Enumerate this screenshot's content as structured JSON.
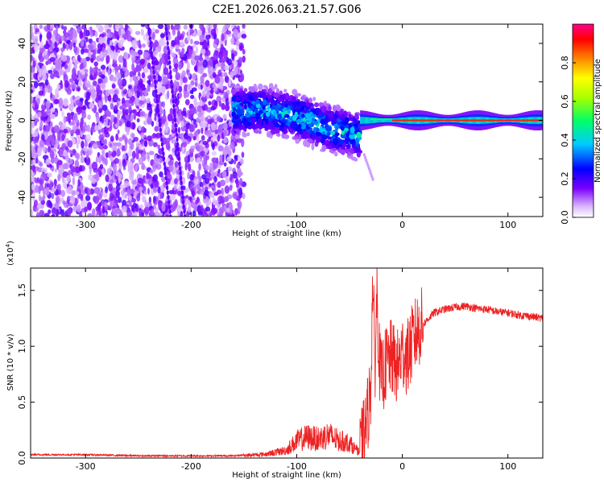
{
  "title": "C2E1.2026.063.21.57.G06",
  "chart_data": [
    {
      "type": "heatmap",
      "title": "C2E1.2026.063.21.57.G06",
      "xlabel": "Height of straight line (km)",
      "ylabel": "Frequency (Hz)",
      "xlim": [
        -352,
        133
      ],
      "ylim": [
        -50,
        50
      ],
      "xticks": [
        -300,
        -200,
        -100,
        0,
        100
      ],
      "yticks": [
        -40,
        -20,
        0,
        20,
        40
      ],
      "colorbar": {
        "label": "Normalized spectral amplitude",
        "range": [
          0,
          1
        ],
        "ticks": [
          "0.0",
          "0.2",
          "0.4",
          "0.6",
          "0.8"
        ],
        "colors": [
          "#ffffff",
          "#cc88ff",
          "#7a00ff",
          "#0000ff",
          "#00ccff",
          "#00ff66",
          "#ffff00",
          "#ff8800",
          "#ff0000",
          "#ff0088"
        ]
      },
      "regions": [
        {
          "name": "noise",
          "x_range": [
            -352,
            -150
          ],
          "freq_range": [
            -50,
            50
          ],
          "amplitude": "low-medium"
        },
        {
          "name": "onset",
          "x_range": [
            -160,
            -40
          ],
          "freq_center": [
            5,
            5,
            2,
            -4,
            -8
          ],
          "amplitude": "medium"
        },
        {
          "name": "carrier",
          "x_range": [
            -40,
            133
          ],
          "freq_center": 0,
          "amplitude": "high"
        }
      ]
    },
    {
      "type": "line",
      "xlabel": "Height of straight line (km)",
      "ylabel": "SNR (10 * v/v)",
      "yscale_label": "(x10",
      "yscale_exp": "4",
      "xlim": [
        -352,
        133
      ],
      "ylim": [
        0,
        1.7
      ],
      "xticks": [
        -300,
        -200,
        -100,
        0,
        100
      ],
      "yticks": [
        0.0,
        0.5,
        1.0,
        1.5
      ],
      "ytick_labels": [
        "0.0",
        "0.5",
        "1.0",
        "1.5"
      ],
      "color": "#ee2222",
      "series": [
        {
          "name": "SNR",
          "x": [
            -352,
            -300,
            -250,
            -200,
            -160,
            -130,
            -110,
            -100,
            -90,
            -80,
            -70,
            -60,
            -50,
            -45,
            -40,
            -35,
            -30,
            -28,
            -26,
            -24,
            -22,
            -20,
            -15,
            -10,
            -5,
            0,
            5,
            10,
            15,
            20,
            30,
            40,
            50,
            60,
            70,
            80,
            90,
            100,
            110,
            120,
            133
          ],
          "y": [
            0.03,
            0.03,
            0.02,
            0.02,
            0.02,
            0.04,
            0.08,
            0.18,
            0.22,
            0.2,
            0.24,
            0.18,
            0.16,
            0.1,
            0.05,
            0.25,
            0.6,
            1.6,
            0.8,
            1.5,
            0.9,
            0.7,
            0.85,
            0.9,
            0.8,
            0.95,
            0.9,
            1.05,
            1.15,
            1.2,
            1.3,
            1.33,
            1.35,
            1.36,
            1.34,
            1.33,
            1.31,
            1.3,
            1.28,
            1.27,
            1.25
          ]
        }
      ]
    }
  ]
}
